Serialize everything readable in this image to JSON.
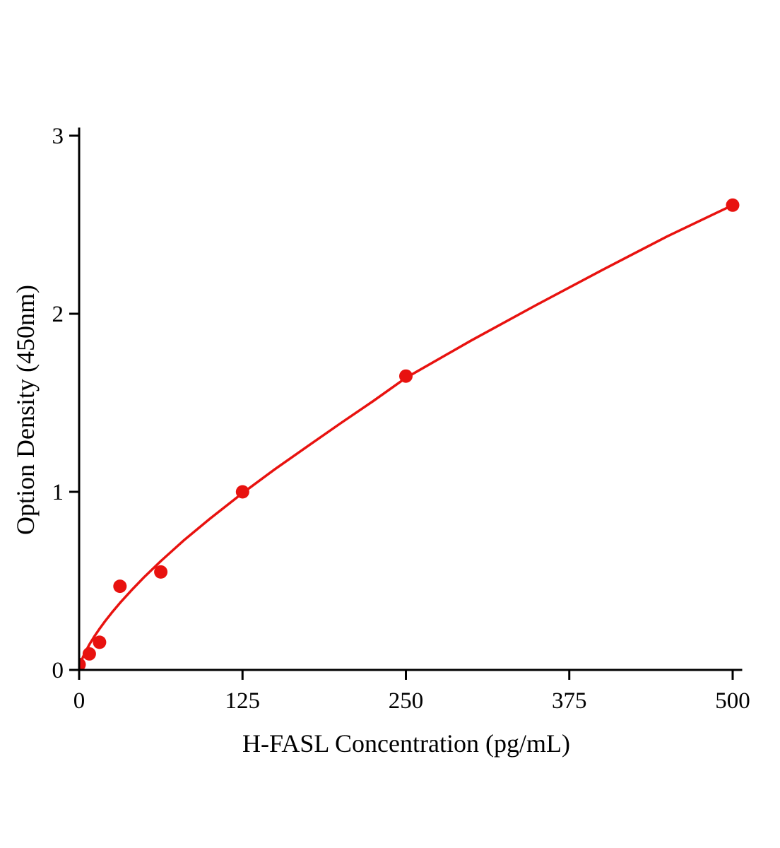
{
  "chart_data": {
    "type": "scatter",
    "title": "",
    "xlabel": "H-FASL Concentration (pg/mL)",
    "ylabel": "Option Density (450nm)",
    "xlim": [
      0,
      500
    ],
    "ylim": [
      0,
      3
    ],
    "x_ticks": [
      0,
      125,
      250,
      375,
      500
    ],
    "y_ticks": [
      0,
      1,
      2,
      3
    ],
    "grid": false,
    "legend_position": "none",
    "points": {
      "x": [
        0,
        7.8,
        15.6,
        31.25,
        62.5,
        125,
        250,
        500
      ],
      "y": [
        0.03,
        0.09,
        0.155,
        0.47,
        0.55,
        1.0,
        1.65,
        2.61
      ]
    },
    "fit_curve": {
      "x": [
        0,
        1,
        2,
        3,
        5,
        8,
        12,
        15.6,
        20,
        25,
        31.25,
        40,
        50,
        62.5,
        80,
        100,
        125,
        150,
        175,
        200,
        225,
        250,
        300,
        350,
        400,
        450,
        500
      ],
      "y": [
        0,
        0.034,
        0.055,
        0.073,
        0.104,
        0.145,
        0.192,
        0.231,
        0.275,
        0.322,
        0.376,
        0.447,
        0.523,
        0.611,
        0.727,
        0.849,
        0.993,
        1.128,
        1.257,
        1.385,
        1.51,
        1.64,
        1.85,
        2.05,
        2.245,
        2.435,
        2.61
      ]
    },
    "line_color": "#e8120f",
    "marker_color": "#e8120f",
    "marker_radius": 9.5,
    "axis_color": "#000000"
  }
}
